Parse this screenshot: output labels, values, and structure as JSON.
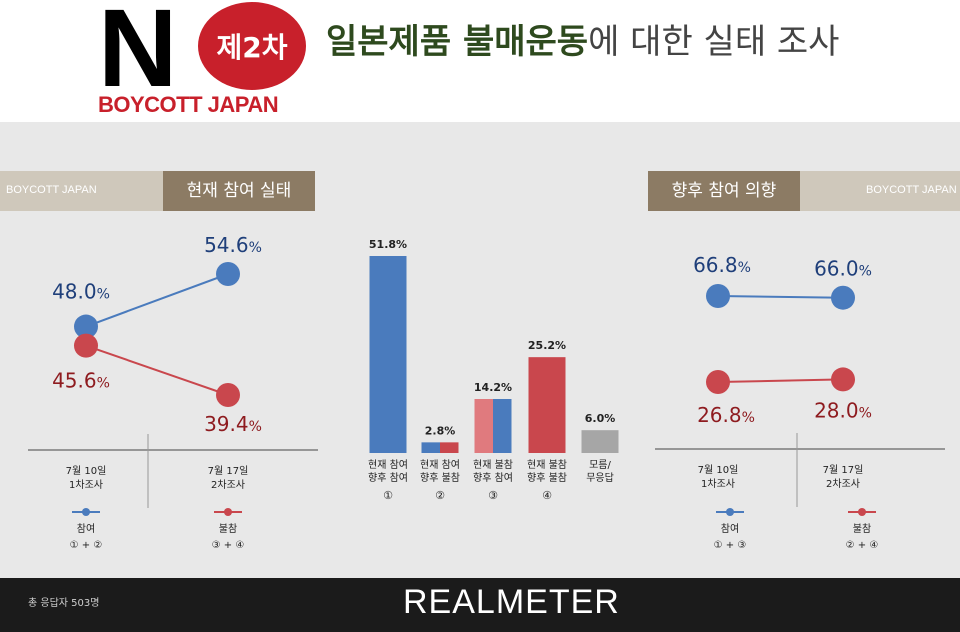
{
  "header": {
    "logo_letter": "N",
    "logo_badge": "제2차",
    "logo_subtitle": "BOYCOTT JAPAN",
    "title_strong": "일본제품 불매운동",
    "title_rest": "에 대한 실태 조사"
  },
  "left_section": {
    "tag_small": "BOYCOTT JAPAN",
    "tag_title": "현재 참여 실태"
  },
  "right_section": {
    "tag_title": "향후 참여 의향",
    "tag_small": "BOYCOTT JAPAN"
  },
  "colors": {
    "blue": "#4a7bbd",
    "red": "#c9474d",
    "gray": "#a6a6a6",
    "value_blue": "#1f3f7a",
    "value_red": "#8e1b1f"
  },
  "chart_data": [
    {
      "type": "line",
      "x": [
        "7월 10일\n1차조사",
        "7월 17일\n2차조사"
      ],
      "series": [
        {
          "name": "참여",
          "sub": "① + ②",
          "values": [
            48.0,
            54.6
          ]
        },
        {
          "name": "불참",
          "sub": "③ + ④",
          "values": [
            45.6,
            39.4
          ]
        }
      ],
      "value_suffix": "%"
    },
    {
      "type": "bar",
      "categories": [
        {
          "label": "현재 참여\n향후 참여",
          "num": "①",
          "value": 51.8,
          "fill": [
            "blue"
          ]
        },
        {
          "label": "현재 참여\n향후 불참",
          "num": "②",
          "value": 2.8,
          "fill": [
            "blue",
            "red"
          ]
        },
        {
          "label": "현재 불참\n향후 참여",
          "num": "③",
          "value": 14.2,
          "fill": [
            "red-light",
            "blue"
          ]
        },
        {
          "label": "현재 불참\n향후 불참",
          "num": "④",
          "value": 25.2,
          "fill": [
            "red"
          ]
        },
        {
          "label": "모름/\n무응답",
          "num": "",
          "value": 6.0,
          "fill": [
            "gray"
          ]
        }
      ],
      "value_suffix": "%"
    },
    {
      "type": "line",
      "x": [
        "7월 10일\n1차조사",
        "7월 17일\n2차조사"
      ],
      "series": [
        {
          "name": "참여",
          "sub": "① + ③",
          "values": [
            66.8,
            66.0
          ]
        },
        {
          "name": "불참",
          "sub": "② + ④",
          "values": [
            26.8,
            28.0
          ]
        }
      ],
      "value_suffix": "%"
    }
  ],
  "footer": {
    "note": "총 응답자 503명",
    "brand": "REALMETER"
  }
}
